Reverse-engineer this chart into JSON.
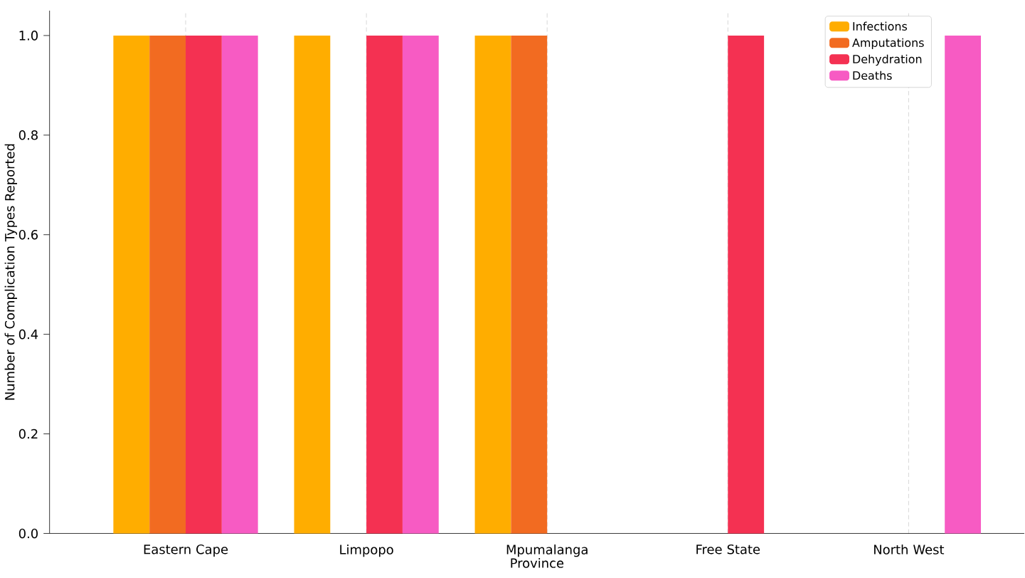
{
  "chart_data": {
    "type": "bar",
    "xlabel": "Province",
    "ylabel": "Number of Complication Types Reported",
    "categories": [
      "Eastern Cape",
      "Limpopo",
      "Mpumalanga",
      "Free State",
      "North West"
    ],
    "series": [
      {
        "name": "Infections",
        "color": "#ffad00",
        "values": [
          1,
          1,
          1,
          0,
          0
        ]
      },
      {
        "name": "Amputations",
        "color": "#f26b21",
        "values": [
          1,
          0,
          1,
          0,
          0
        ]
      },
      {
        "name": "Dehydration",
        "color": "#f43152",
        "values": [
          1,
          1,
          0,
          1,
          0
        ]
      },
      {
        "name": "Deaths",
        "color": "#f75bc3",
        "values": [
          1,
          1,
          0,
          0,
          1
        ]
      }
    ],
    "ylim": [
      0,
      1.05
    ],
    "yticks": [
      {
        "value": 0,
        "label": "0.0"
      },
      {
        "value": 0.2,
        "label": "0.2"
      },
      {
        "value": 0.4,
        "label": "0.4"
      },
      {
        "value": 0.6,
        "label": "0.6"
      },
      {
        "value": 0.8,
        "label": "0.8"
      },
      {
        "value": 1.0,
        "label": "1.0"
      }
    ],
    "grid": "x",
    "legend": "top right"
  }
}
